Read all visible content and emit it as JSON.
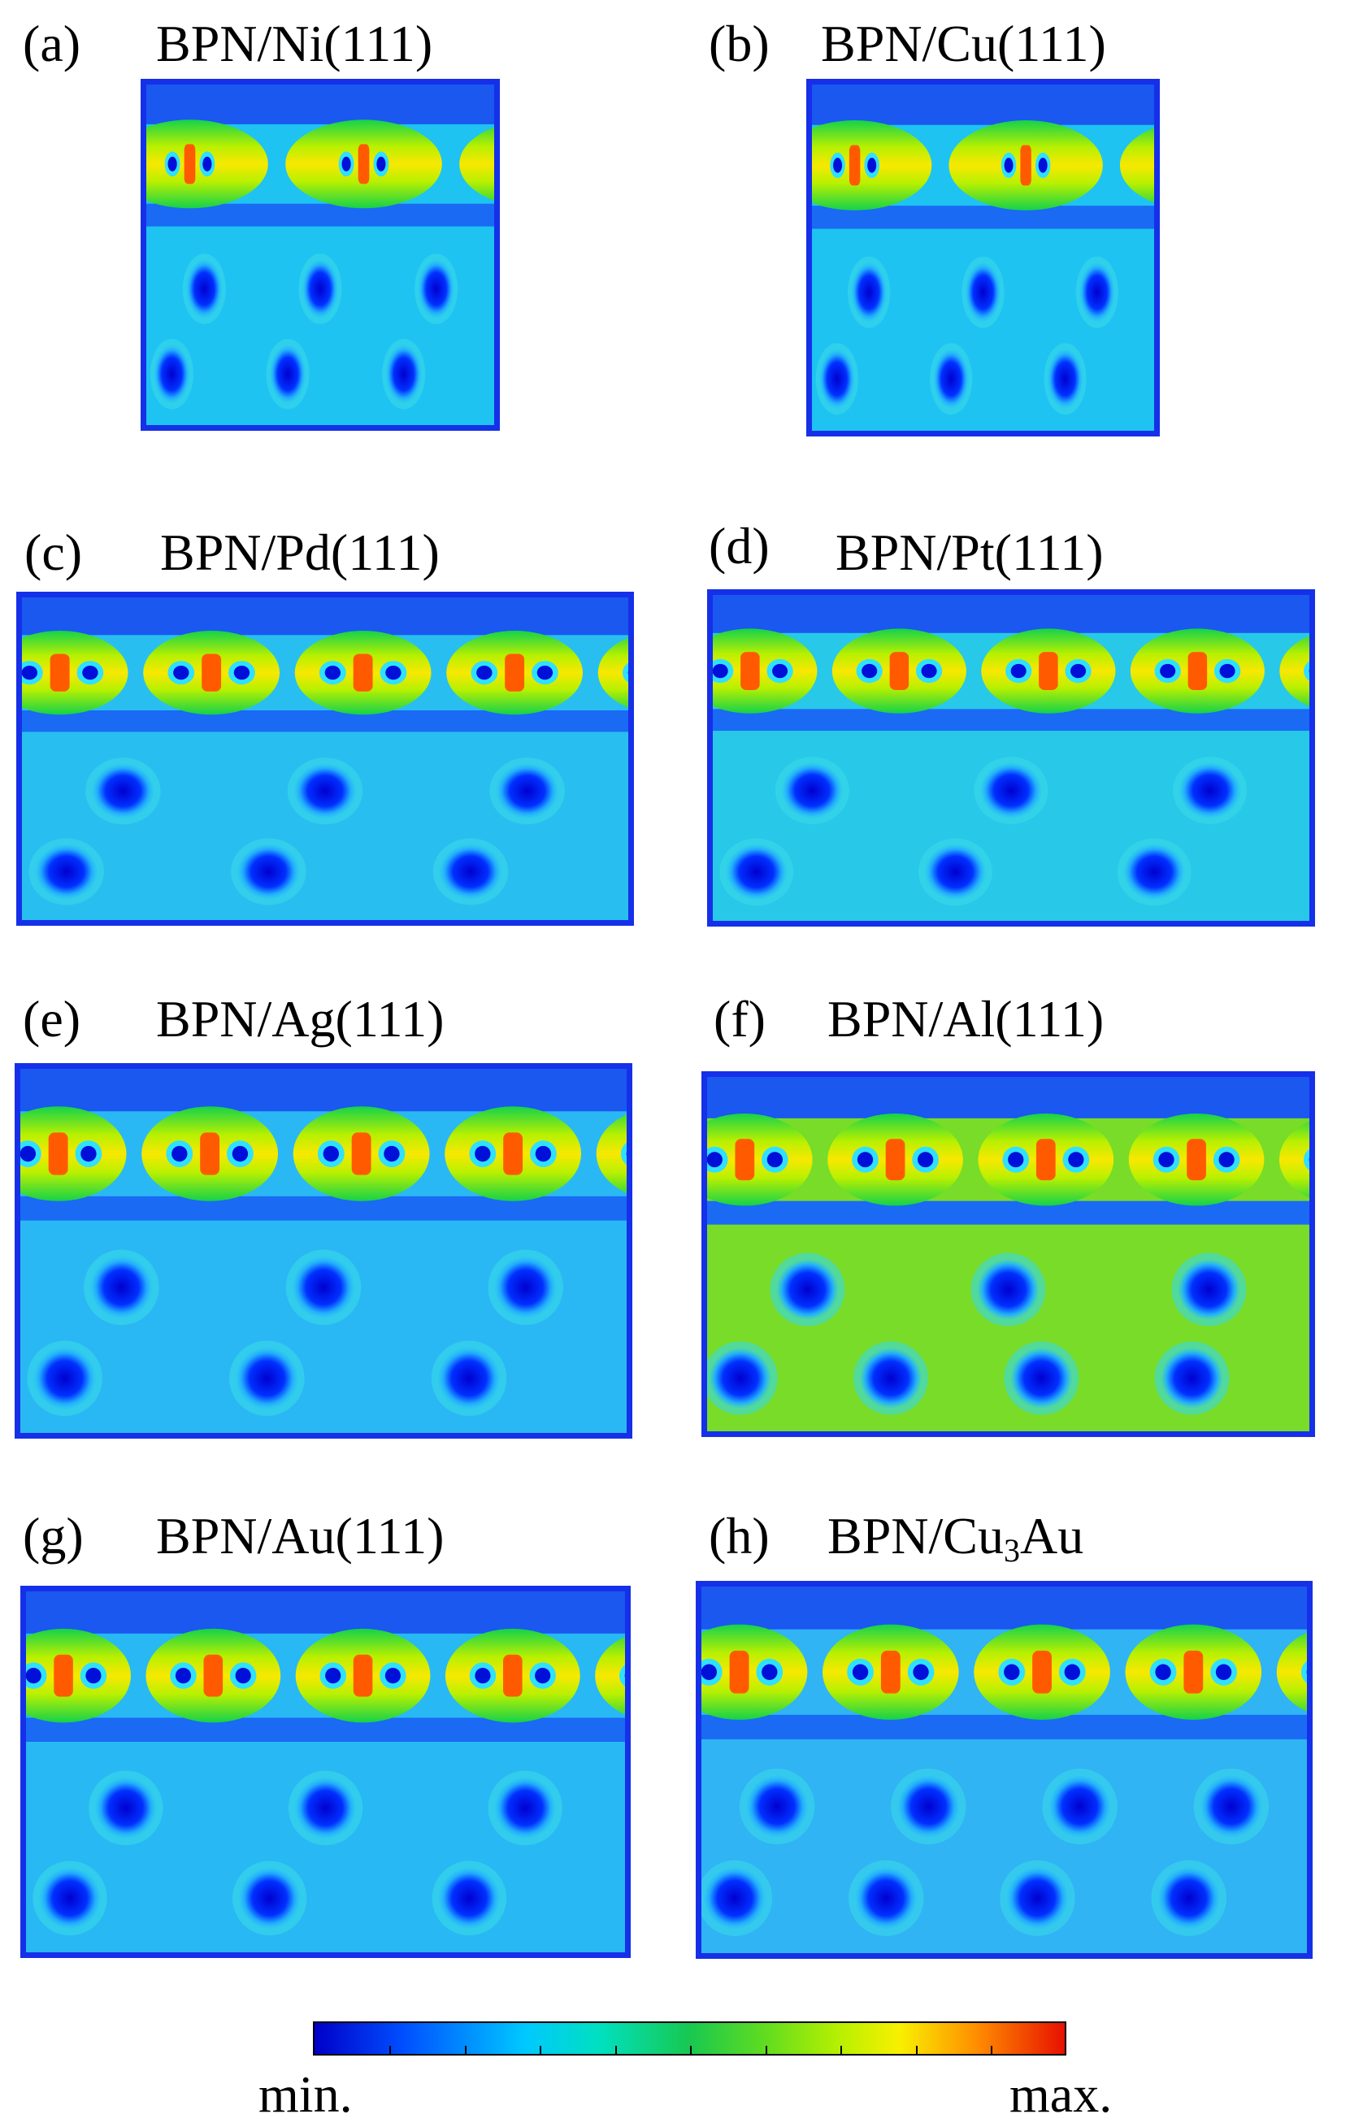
{
  "panels": [
    {
      "letter": "(a)",
      "name": "BPN/Ni(111)",
      "pairs": 2,
      "row1_dots": 3,
      "row2_dots": 3,
      "substrate_color": "#1ec3f2"
    },
    {
      "letter": "(b)",
      "name": "BPN/Cu(111)",
      "pairs": 2,
      "row1_dots": 3,
      "row2_dots": 3,
      "substrate_color": "#1ec3f2"
    },
    {
      "letter": "(c)",
      "name": "BPN/Pd(111)",
      "pairs": 4,
      "row1_dots": 3,
      "row2_dots": 3,
      "substrate_color": "#28bff0"
    },
    {
      "letter": "(d)",
      "name": "BPN/Pt(111)",
      "pairs": 4,
      "row1_dots": 3,
      "row2_dots": 3,
      "substrate_color": "#28c8e8"
    },
    {
      "letter": "(e)",
      "name": "BPN/Ag(111)",
      "pairs": 4,
      "row1_dots": 3,
      "row2_dots": 3,
      "substrate_color": "#2ab8f4"
    },
    {
      "letter": "(f)",
      "name": "BPN/Al(111)",
      "pairs": 4,
      "row1_dots": 3,
      "row2_dots": 4,
      "substrate_color": "#78dc28"
    },
    {
      "letter": "(g)",
      "name": "BPN/Au(111)",
      "pairs": 4,
      "row1_dots": 3,
      "row2_dots": 3,
      "substrate_color": "#28b8f4"
    },
    {
      "letter": "(h)",
      "name_prefix": "BPN/",
      "name_main": "Cu",
      "name_sub": "3",
      "name_suffix": "Au",
      "pairs": 4,
      "row1_dots": 4,
      "row2_dots": 4,
      "substrate_color": "#30b4f4"
    }
  ],
  "colorbar": {
    "min_label": "min.",
    "max_label": "max."
  },
  "colors": {
    "frame": "#1530e8",
    "low": "#0000c8",
    "high": "#e81000"
  }
}
